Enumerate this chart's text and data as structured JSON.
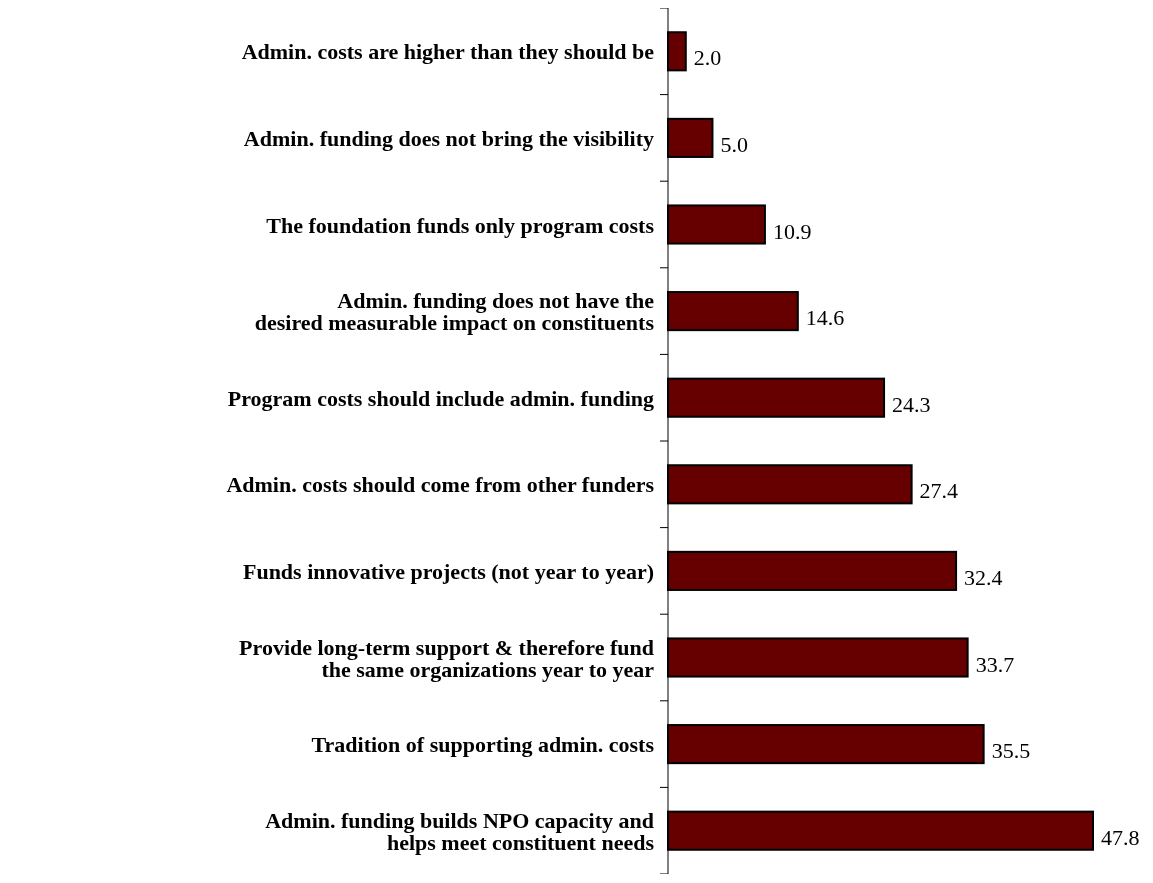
{
  "chart_data": {
    "type": "bar",
    "orientation": "horizontal",
    "categories": [
      "Admin. costs are higher than they should be",
      "Admin. funding does not bring the visibility",
      "The foundation funds only program costs",
      "Admin. funding does not have the\ndesired measurable impact on constituents",
      "Program costs should include admin. funding",
      "Admin. costs should come from other funders",
      "Funds innovative projects (not year to year)",
      "Provide long-term support & therefore fund\nthe same organizations year to year",
      "Tradition of supporting admin. costs",
      "Admin. funding builds NPO capacity and\nhelps meet constituent needs"
    ],
    "values": [
      2.0,
      5.0,
      10.9,
      14.6,
      24.3,
      27.4,
      32.4,
      33.7,
      35.5,
      47.8
    ],
    "value_labels": [
      "2.0",
      "5.0",
      "10.9",
      "14.6",
      "24.3",
      "27.4",
      "32.4",
      "33.7",
      "35.5",
      "47.8"
    ],
    "color": "#660000"
  }
}
